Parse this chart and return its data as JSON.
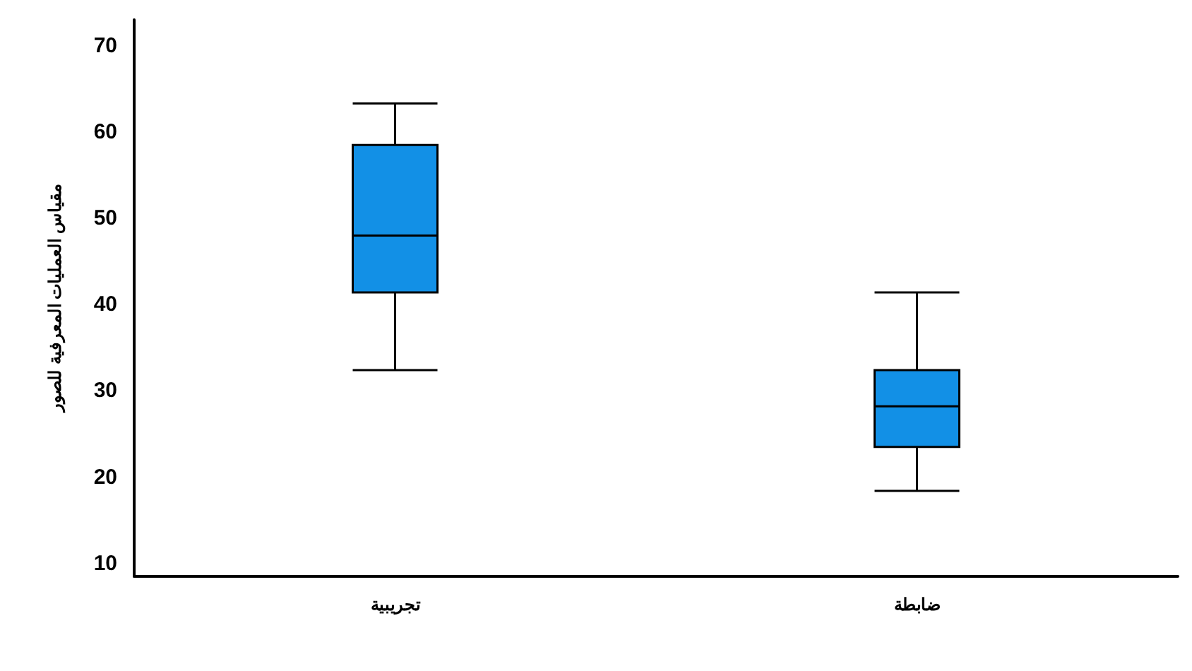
{
  "chart_data": {
    "type": "box",
    "ylabel": "مقياس العمليات المعرفية للصور",
    "categories": [
      "تجريبية",
      "ضابطة"
    ],
    "boxes": [
      {
        "low": 32.4,
        "q1": 41.4,
        "median": 48,
        "q3": 58.5,
        "high": 63.3
      },
      {
        "low": 18.4,
        "q1": 23.5,
        "median": 28.2,
        "q3": 32.4,
        "high": 41.4
      }
    ],
    "color": "#1290e6",
    "ylim": [
      8.5,
      73
    ],
    "yticks": [
      10,
      20,
      30,
      40,
      50,
      60,
      70
    ],
    "grid": false
  }
}
